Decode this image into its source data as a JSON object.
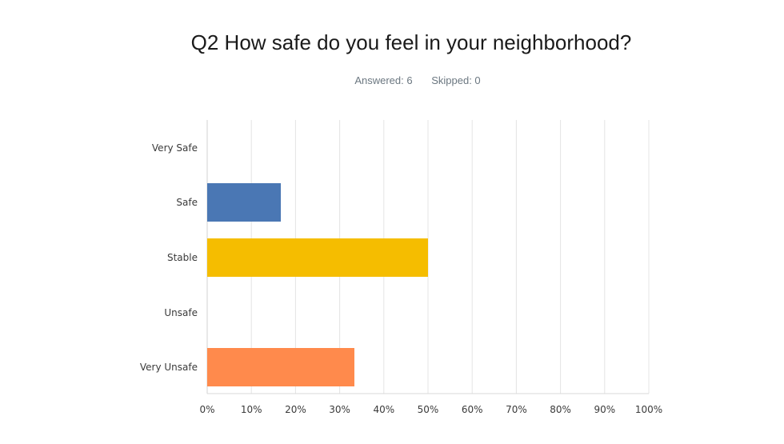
{
  "chart_data": {
    "type": "bar",
    "orientation": "horizontal",
    "title": "Q2 How safe do you feel in your neighborhood?",
    "stats": {
      "answered": "Answered: 6",
      "skipped": "Skipped: 0"
    },
    "categories": [
      "Very Safe",
      "Safe",
      "Stable",
      "Unsafe",
      "Very Unsafe"
    ],
    "values": [
      0,
      16.67,
      50,
      0,
      33.33
    ],
    "colors": [
      "#4a77b4",
      "#4a77b4",
      "#f5bd00",
      "#ff8a4c",
      "#ff8a4c"
    ],
    "xlim": [
      0,
      100
    ],
    "xticks": [
      "0%",
      "10%",
      "20%",
      "30%",
      "40%",
      "50%",
      "60%",
      "70%",
      "80%",
      "90%",
      "100%"
    ],
    "grid": true
  }
}
